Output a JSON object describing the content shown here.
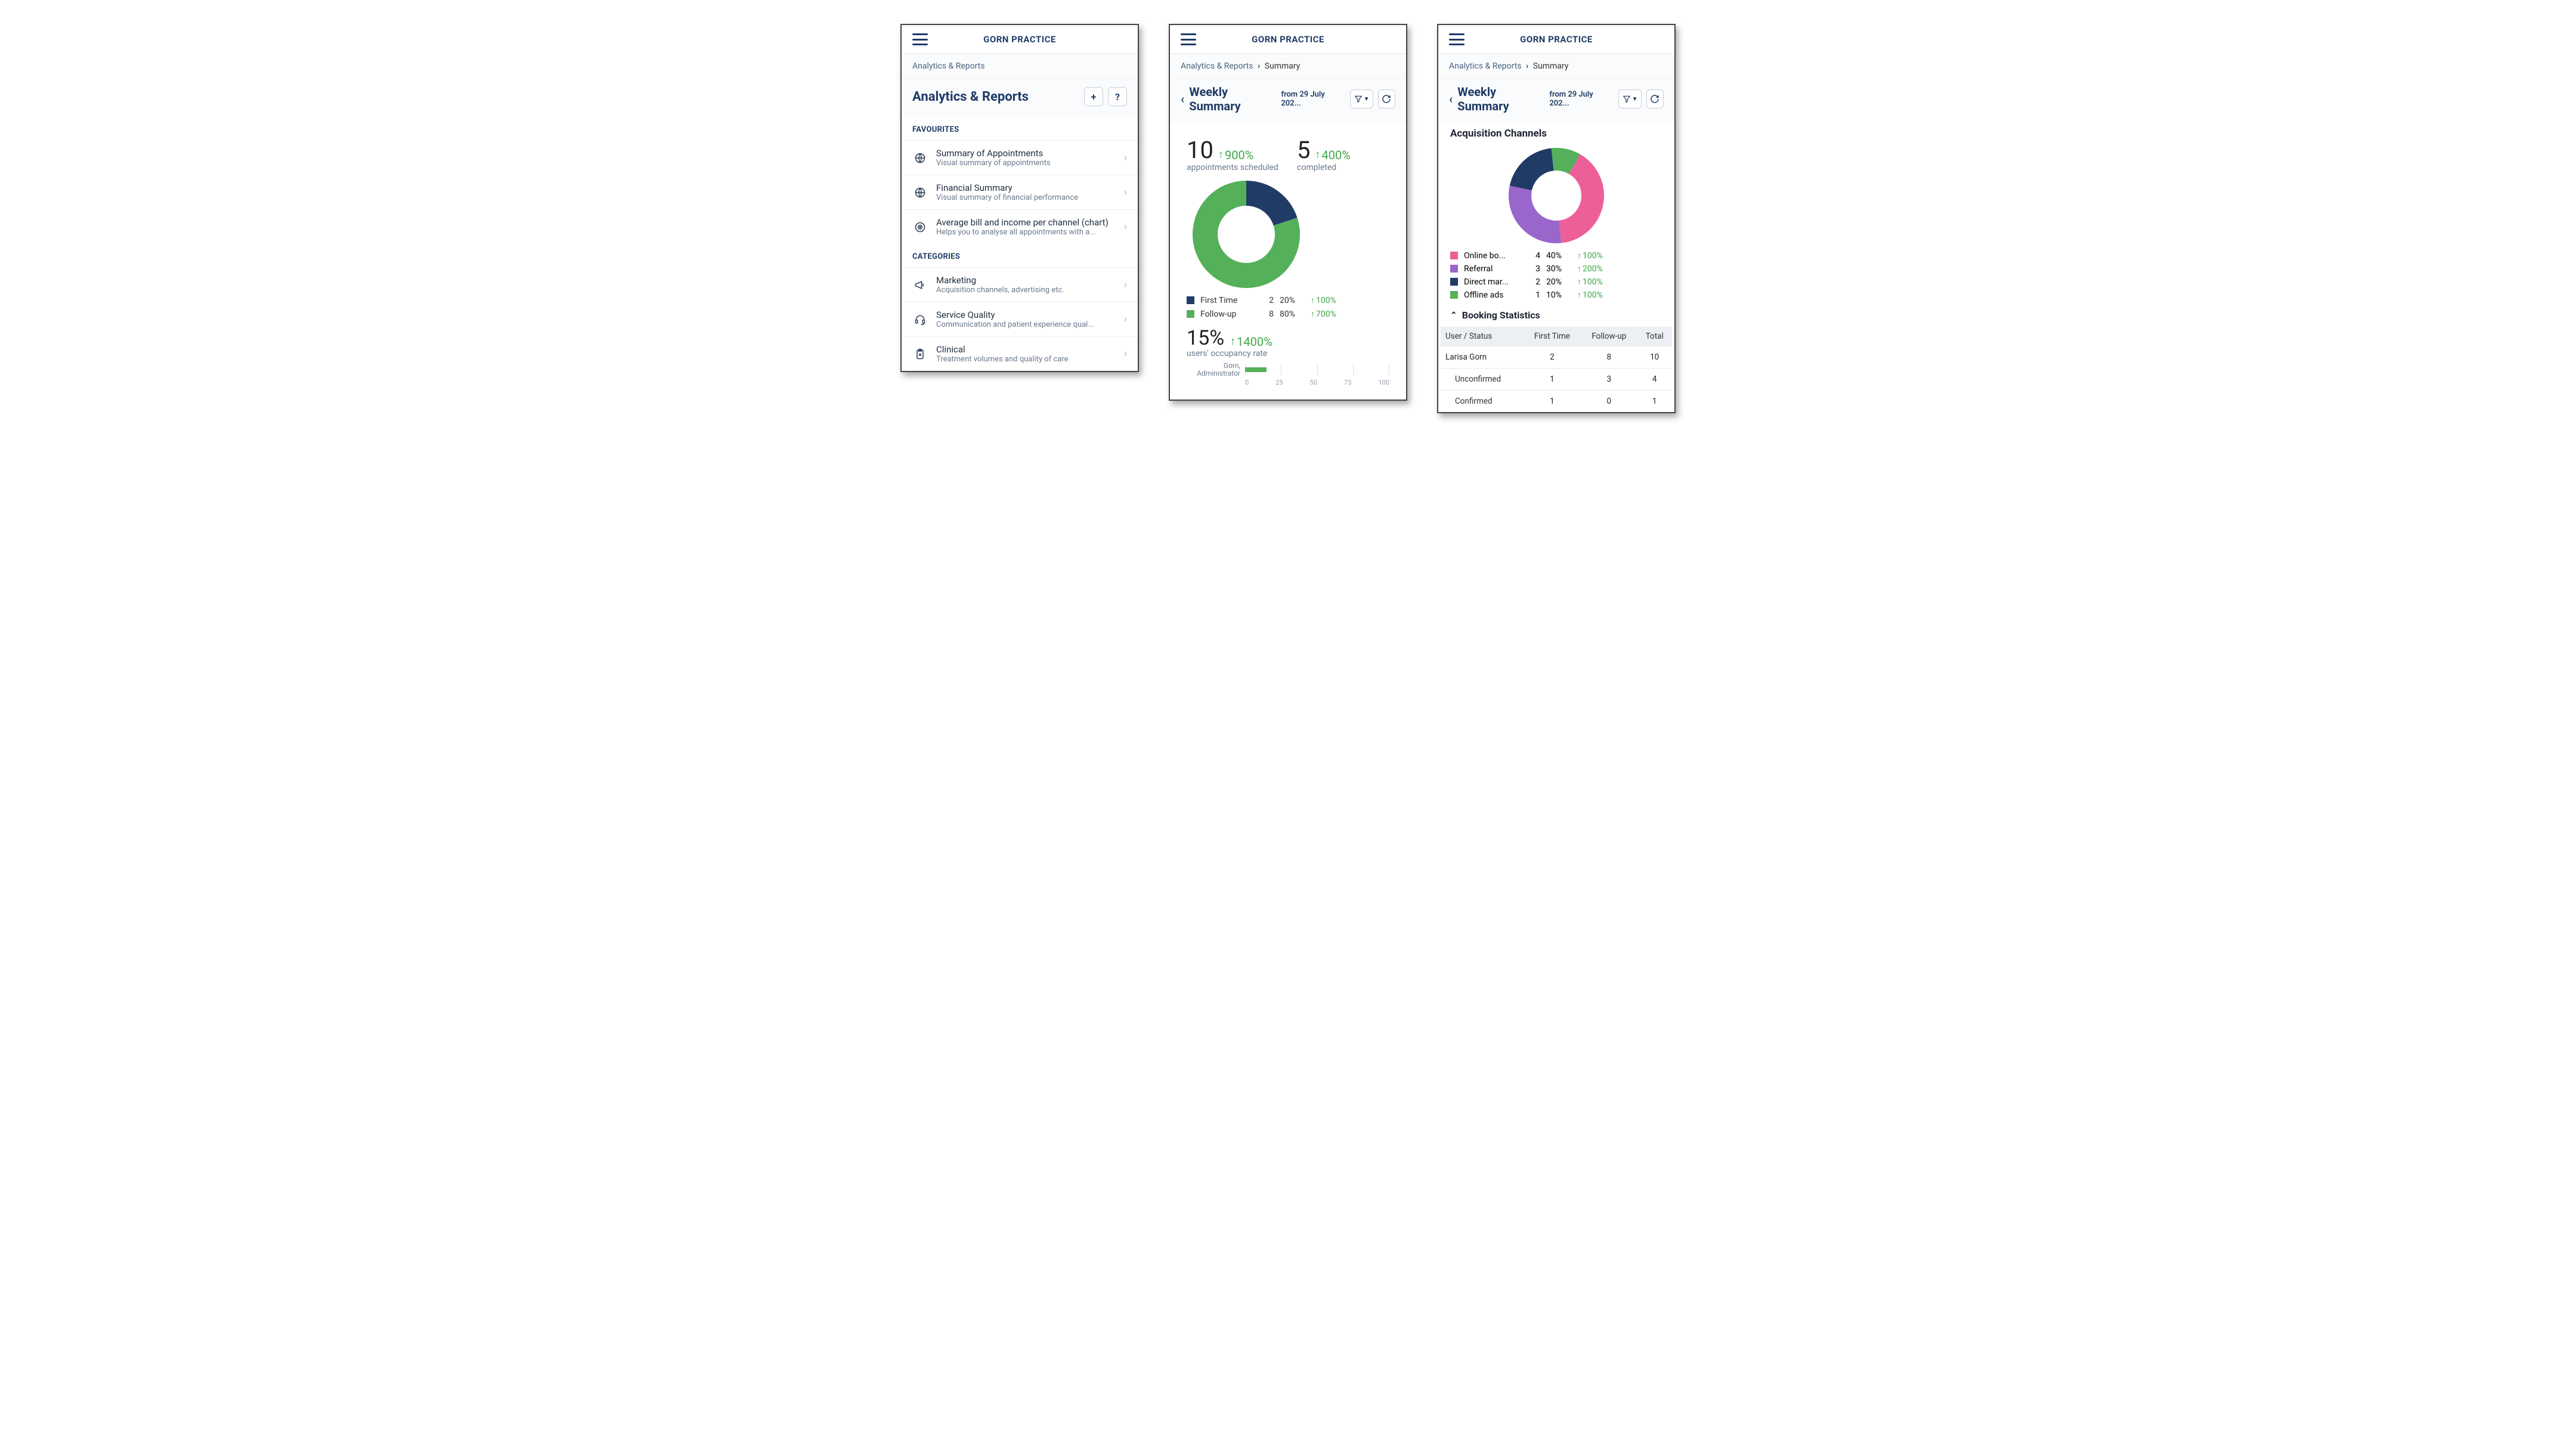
{
  "colors": {
    "brand": "#1f3b66",
    "text_muted": "#6b7a8c",
    "up_green": "#3fa648",
    "border": "#e5e8ec",
    "grid": "#d8dde3"
  },
  "app_title": "GORN PRACTICE",
  "screen1": {
    "breadcrumb": "Analytics & Reports",
    "page_title": "Analytics & Reports",
    "add_label": "+",
    "sections": {
      "favourites_label": "FAVOURITES",
      "categories_label": "CATEGORIES"
    },
    "favourites": [
      {
        "icon": "globe-icon",
        "title": "Summary of Appointments",
        "desc": "Visual summary of appointments"
      },
      {
        "icon": "globe-icon",
        "title": "Financial Summary",
        "desc": "Visual summary of financial performance"
      },
      {
        "icon": "globe-target-icon",
        "title": "Average bill and income per channel (chart)",
        "desc": "Helps you to analyse all appointments with a..."
      }
    ],
    "categories": [
      {
        "icon": "megaphone-icon",
        "title": "Marketing",
        "desc": "Acquisition channels, advertising etc."
      },
      {
        "icon": "headset-icon",
        "title": "Service Quality",
        "desc": "Communication and patient experience qual..."
      },
      {
        "icon": "clipboard-icon",
        "title": "Clinical",
        "desc": "Treatment volumes and quality of care"
      }
    ]
  },
  "screen2": {
    "breadcrumb_root": "Analytics & Reports",
    "breadcrumb_current": "Summary",
    "title": "Weekly Summary",
    "subtitle": "from 29 July 202...",
    "stats": [
      {
        "value": "10",
        "delta": "900%",
        "label": "appointments scheduled"
      },
      {
        "value": "5",
        "delta": "400%",
        "label": "completed"
      }
    ],
    "donut": {
      "type": "donut",
      "size": 180,
      "thickness": 42,
      "background": "#ffffff",
      "slices": [
        {
          "name": "First Time",
          "count": 2,
          "pct": 20,
          "delta": "100%",
          "color": "#1f3b66"
        },
        {
          "name": "Follow-up",
          "count": 8,
          "pct": 80,
          "delta": "700%",
          "color": "#55b05a"
        }
      ],
      "start_angle_deg": -90
    },
    "occupancy": {
      "value": "15%",
      "delta": "1400%",
      "label": "users' occupancy rate"
    },
    "mini_chart": {
      "type": "bar-horizontal",
      "x_ticks": [
        0,
        25,
        50,
        75,
        100
      ],
      "bar_color": "#55b05a",
      "rows": [
        {
          "label_line1": "Gorn,",
          "label_line2": "Administrator",
          "value": 15
        }
      ]
    }
  },
  "screen3": {
    "breadcrumb_root": "Analytics & Reports",
    "breadcrumb_current": "Summary",
    "title": "Weekly Summary",
    "subtitle": "from 29 July 202...",
    "section_title": "Acquisition Channels",
    "donut": {
      "type": "donut",
      "size": 160,
      "thickness": 38,
      "background": "#ffffff",
      "start_angle_deg": -60,
      "slices": [
        {
          "name": "Online bo...",
          "count": 4,
          "pct": 40,
          "delta": "100%",
          "color": "#ec5f99"
        },
        {
          "name": "Referral",
          "count": 3,
          "pct": 30,
          "delta": "200%",
          "color": "#9966cc"
        },
        {
          "name": "Direct mar...",
          "count": 2,
          "pct": 20,
          "delta": "100%",
          "color": "#1f3b66"
        },
        {
          "name": "Offline ads",
          "count": 1,
          "pct": 10,
          "delta": "100%",
          "color": "#55b05a"
        }
      ]
    },
    "collapse_label": "Booking Statistics",
    "table": {
      "columns": [
        "User / Status",
        "First Time",
        "Follow-up",
        "Total"
      ],
      "rows": [
        {
          "label": "Larisa Gorn",
          "indent": false,
          "first": 2,
          "follow": 8,
          "total": 10
        },
        {
          "label": "Unconfirmed",
          "indent": true,
          "first": 1,
          "follow": 3,
          "total": 4
        },
        {
          "label": "Confirmed",
          "indent": true,
          "first": 1,
          "follow": 0,
          "total": 1
        }
      ]
    }
  }
}
